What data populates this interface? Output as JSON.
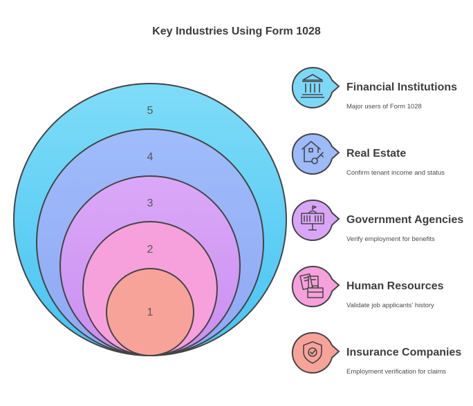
{
  "title": "Key Industries Using Form 1028",
  "circles": [
    {
      "label": "5",
      "color": "#7dd8f7"
    },
    {
      "label": "4",
      "color": "#9dbaf9"
    },
    {
      "label": "3",
      "color": "#d9a6f7"
    },
    {
      "label": "2",
      "color": "#f6a1dc"
    },
    {
      "label": "1",
      "color": "#f8a39a"
    }
  ],
  "items": [
    {
      "title": "Financial Institutions",
      "desc": "Major users of Form 1028",
      "icon": "bank-icon",
      "color": "#7dd8f7"
    },
    {
      "title": "Real Estate",
      "desc": "Confirm tenant income and status",
      "icon": "house-key-icon",
      "color": "#9dbaf9"
    },
    {
      "title": "Government Agencies",
      "desc": "Verify employment for benefits",
      "icon": "government-building-icon",
      "color": "#d9a6f7"
    },
    {
      "title": "Human Resources",
      "desc": "Validate job applicants' history",
      "icon": "documents-briefcase-icon",
      "color": "#f6a1dc"
    },
    {
      "title": "Insurance Companies",
      "desc": "Employment verification for claims",
      "icon": "shield-check-icon",
      "color": "#f8a39a"
    }
  ]
}
